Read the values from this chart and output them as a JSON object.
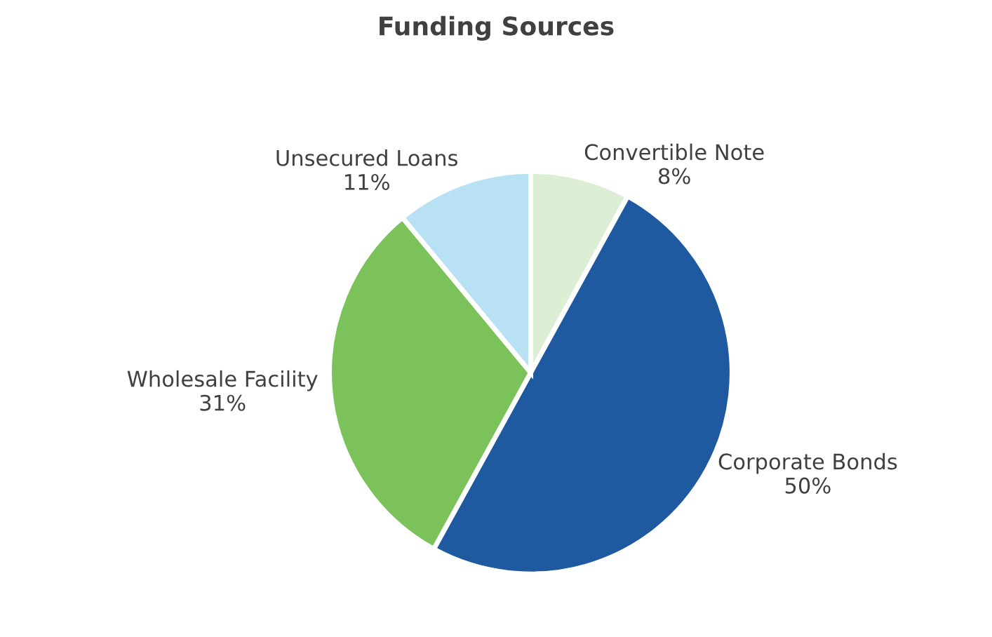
{
  "chart_data": {
    "type": "pie",
    "title": "Funding Sources",
    "categories": [
      "Convertible Note",
      "Corporate Bonds",
      "Wholesale Facility",
      "Unsecured Loans"
    ],
    "values": [
      8,
      50,
      31,
      11
    ],
    "value_labels": [
      "8%",
      "50%",
      "31%",
      "11%"
    ],
    "colors": [
      "#dcefd4",
      "#1f5aa0",
      "#7cc25a",
      "#b8e2f4"
    ],
    "legend": false
  }
}
